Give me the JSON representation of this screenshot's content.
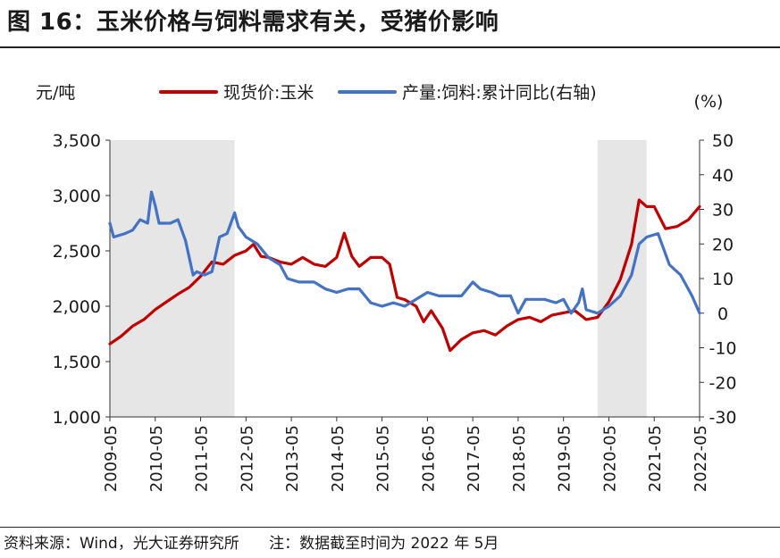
{
  "header": {
    "title": "图 16：玉米价格与饲料需求有关，受猪价影响"
  },
  "footer": {
    "source": "资料来源：Wind，光大证券研究所",
    "note": "注：数据截至时间为 2022 年 5月"
  },
  "chart_data": {
    "type": "line",
    "left_unit": "元/吨",
    "right_unit": "(%)",
    "y_left": {
      "min": 1000,
      "max": 3500,
      "ticks": [
        1000,
        1500,
        2000,
        2500,
        3000,
        3500
      ],
      "tick_labels": [
        "1,000",
        "1,500",
        "2,000",
        "2,500",
        "3,000",
        "3,500"
      ]
    },
    "y_right": {
      "min": -30,
      "max": 50,
      "ticks": [
        -30,
        -20,
        -10,
        0,
        10,
        20,
        30,
        40,
        50
      ],
      "tick_labels": [
        "-30",
        "-20",
        "-10",
        "0",
        "10",
        "20",
        "30",
        "40",
        "50"
      ]
    },
    "x_range": [
      "2009-05",
      "2022-05"
    ],
    "x_ticks": [
      "2009-05",
      "2010-05",
      "2011-05",
      "2012-05",
      "2013-05",
      "2014-05",
      "2015-05",
      "2016-05",
      "2017-05",
      "2018-05",
      "2019-05",
      "2020-05",
      "2021-05",
      "2022-05"
    ],
    "grid": false,
    "legend_position": "top",
    "shaded_periods": [
      {
        "start": "2009-05",
        "end": "2012-02"
      },
      {
        "start": "2020-02",
        "end": "2021-03"
      }
    ],
    "series": [
      {
        "name": "现货价:玉米",
        "axis": "left",
        "color": "#c00000",
        "points": [
          [
            "2009-05",
            1660
          ],
          [
            "2009-08",
            1730
          ],
          [
            "2009-11",
            1820
          ],
          [
            "2010-02",
            1880
          ],
          [
            "2010-05",
            1970
          ],
          [
            "2010-08",
            2040
          ],
          [
            "2010-11",
            2110
          ],
          [
            "2011-02",
            2170
          ],
          [
            "2011-05",
            2270
          ],
          [
            "2011-08",
            2400
          ],
          [
            "2011-11",
            2380
          ],
          [
            "2012-02",
            2460
          ],
          [
            "2012-05",
            2500
          ],
          [
            "2012-07",
            2560
          ],
          [
            "2012-09",
            2450
          ],
          [
            "2012-11",
            2440
          ],
          [
            "2013-02",
            2400
          ],
          [
            "2013-05",
            2380
          ],
          [
            "2013-08",
            2440
          ],
          [
            "2013-11",
            2380
          ],
          [
            "2014-02",
            2360
          ],
          [
            "2014-05",
            2440
          ],
          [
            "2014-07",
            2660
          ],
          [
            "2014-09",
            2450
          ],
          [
            "2014-11",
            2360
          ],
          [
            "2015-02",
            2440
          ],
          [
            "2015-05",
            2440
          ],
          [
            "2015-07",
            2380
          ],
          [
            "2015-09",
            2080
          ],
          [
            "2015-11",
            2060
          ],
          [
            "2016-02",
            2000
          ],
          [
            "2016-04",
            1860
          ],
          [
            "2016-06",
            1960
          ],
          [
            "2016-09",
            1800
          ],
          [
            "2016-11",
            1600
          ],
          [
            "2017-02",
            1700
          ],
          [
            "2017-05",
            1760
          ],
          [
            "2017-08",
            1780
          ],
          [
            "2017-11",
            1740
          ],
          [
            "2018-02",
            1820
          ],
          [
            "2018-05",
            1880
          ],
          [
            "2018-08",
            1900
          ],
          [
            "2018-11",
            1860
          ],
          [
            "2019-02",
            1920
          ],
          [
            "2019-05",
            1940
          ],
          [
            "2019-08",
            1960
          ],
          [
            "2019-11",
            1880
          ],
          [
            "2020-02",
            1900
          ],
          [
            "2020-05",
            2040
          ],
          [
            "2020-08",
            2240
          ],
          [
            "2020-11",
            2560
          ],
          [
            "2021-01",
            2960
          ],
          [
            "2021-03",
            2900
          ],
          [
            "2021-05",
            2900
          ],
          [
            "2021-08",
            2700
          ],
          [
            "2021-11",
            2720
          ],
          [
            "2022-02",
            2780
          ],
          [
            "2022-05",
            2900
          ]
        ]
      },
      {
        "name": "产量:饲料:累计同比(右轴)",
        "axis": "right",
        "color": "#4472c4",
        "points": [
          [
            "2009-05",
            26
          ],
          [
            "2009-06",
            22
          ],
          [
            "2009-09",
            23
          ],
          [
            "2009-11",
            24
          ],
          [
            "2010-01",
            27
          ],
          [
            "2010-03",
            26
          ],
          [
            "2010-04",
            35
          ],
          [
            "2010-05",
            31
          ],
          [
            "2010-06",
            26
          ],
          [
            "2010-09",
            26
          ],
          [
            "2010-11",
            27
          ],
          [
            "2011-01",
            21
          ],
          [
            "2011-03",
            11
          ],
          [
            "2011-04",
            12
          ],
          [
            "2011-06",
            11
          ],
          [
            "2011-08",
            12
          ],
          [
            "2011-10",
            22
          ],
          [
            "2011-12",
            23
          ],
          [
            "2012-02",
            29
          ],
          [
            "2012-03",
            25
          ],
          [
            "2012-05",
            22
          ],
          [
            "2012-08",
            20
          ],
          [
            "2012-11",
            16
          ],
          [
            "2013-02",
            14
          ],
          [
            "2013-04",
            10
          ],
          [
            "2013-07",
            9
          ],
          [
            "2013-11",
            9
          ],
          [
            "2014-02",
            7
          ],
          [
            "2014-05",
            6
          ],
          [
            "2014-08",
            7
          ],
          [
            "2014-11",
            7
          ],
          [
            "2015-02",
            3
          ],
          [
            "2015-05",
            2
          ],
          [
            "2015-08",
            3
          ],
          [
            "2015-11",
            2
          ],
          [
            "2016-02",
            4
          ],
          [
            "2016-05",
            6
          ],
          [
            "2016-08",
            5
          ],
          [
            "2016-11",
            5
          ],
          [
            "2017-02",
            5
          ],
          [
            "2017-05",
            9
          ],
          [
            "2017-07",
            7
          ],
          [
            "2017-10",
            6
          ],
          [
            "2017-12",
            5
          ],
          [
            "2018-03",
            5
          ],
          [
            "2018-05",
            0
          ],
          [
            "2018-07",
            4
          ],
          [
            "2018-10",
            4
          ],
          [
            "2018-12",
            4
          ],
          [
            "2019-03",
            3
          ],
          [
            "2019-05",
            4
          ],
          [
            "2019-07",
            0
          ],
          [
            "2019-09",
            3
          ],
          [
            "2019-10",
            7
          ],
          [
            "2019-11",
            1
          ],
          [
            "2020-02",
            0
          ],
          [
            "2020-05",
            2
          ],
          [
            "2020-08",
            5
          ],
          [
            "2020-11",
            11
          ],
          [
            "2021-01",
            20
          ],
          [
            "2021-03",
            22
          ],
          [
            "2021-06",
            23
          ],
          [
            "2021-09",
            14
          ],
          [
            "2021-12",
            11
          ],
          [
            "2022-03",
            5
          ],
          [
            "2022-05",
            0
          ]
        ]
      }
    ]
  }
}
